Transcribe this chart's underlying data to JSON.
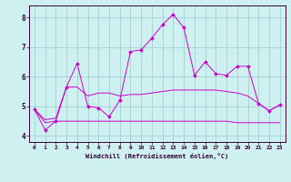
{
  "xlabel": "Windchill (Refroidissement éolien,°C)",
  "bg_color": "#cff0f0",
  "line_color": "#cc00cc",
  "grid_color": "#99cccc",
  "xlim": [
    -0.5,
    23.5
  ],
  "ylim": [
    3.8,
    8.4
  ],
  "xticks": [
    0,
    1,
    2,
    3,
    4,
    5,
    6,
    7,
    8,
    9,
    10,
    11,
    12,
    13,
    14,
    15,
    16,
    17,
    18,
    19,
    20,
    21,
    22,
    23
  ],
  "yticks": [
    4,
    5,
    6,
    7,
    8
  ],
  "series1_x": [
    0,
    1,
    2,
    3,
    4,
    5,
    6,
    7,
    8,
    9,
    10,
    11,
    12,
    13,
    14,
    15,
    16,
    17,
    18,
    19,
    20,
    21,
    22,
    23
  ],
  "series1_y": [
    4.9,
    4.2,
    4.5,
    5.65,
    6.45,
    5.0,
    4.95,
    4.65,
    5.2,
    6.85,
    6.9,
    7.3,
    7.75,
    8.1,
    7.65,
    6.05,
    6.5,
    6.1,
    6.05,
    6.35,
    6.35,
    5.1,
    4.85,
    5.05
  ],
  "series2_x": [
    0,
    1,
    2,
    3,
    4,
    5,
    6,
    7,
    8,
    9,
    10,
    11,
    12,
    13,
    14,
    15,
    16,
    17,
    18,
    19,
    20,
    21,
    22,
    23
  ],
  "series2_y": [
    4.9,
    4.55,
    4.6,
    5.65,
    5.65,
    5.35,
    5.45,
    5.45,
    5.35,
    5.4,
    5.4,
    5.45,
    5.5,
    5.55,
    5.55,
    5.55,
    5.55,
    5.55,
    5.5,
    5.45,
    5.35,
    5.1,
    4.85,
    5.05
  ],
  "series3_x": [
    0,
    1,
    2,
    3,
    4,
    5,
    6,
    7,
    8,
    9,
    10,
    11,
    12,
    13,
    14,
    15,
    16,
    17,
    18,
    19,
    20,
    21,
    22,
    23
  ],
  "series3_y": [
    4.9,
    4.45,
    4.5,
    4.5,
    4.5,
    4.5,
    4.5,
    4.5,
    4.5,
    4.5,
    4.5,
    4.5,
    4.5,
    4.5,
    4.5,
    4.5,
    4.5,
    4.5,
    4.5,
    4.45,
    4.45,
    4.45,
    4.45,
    4.45
  ]
}
